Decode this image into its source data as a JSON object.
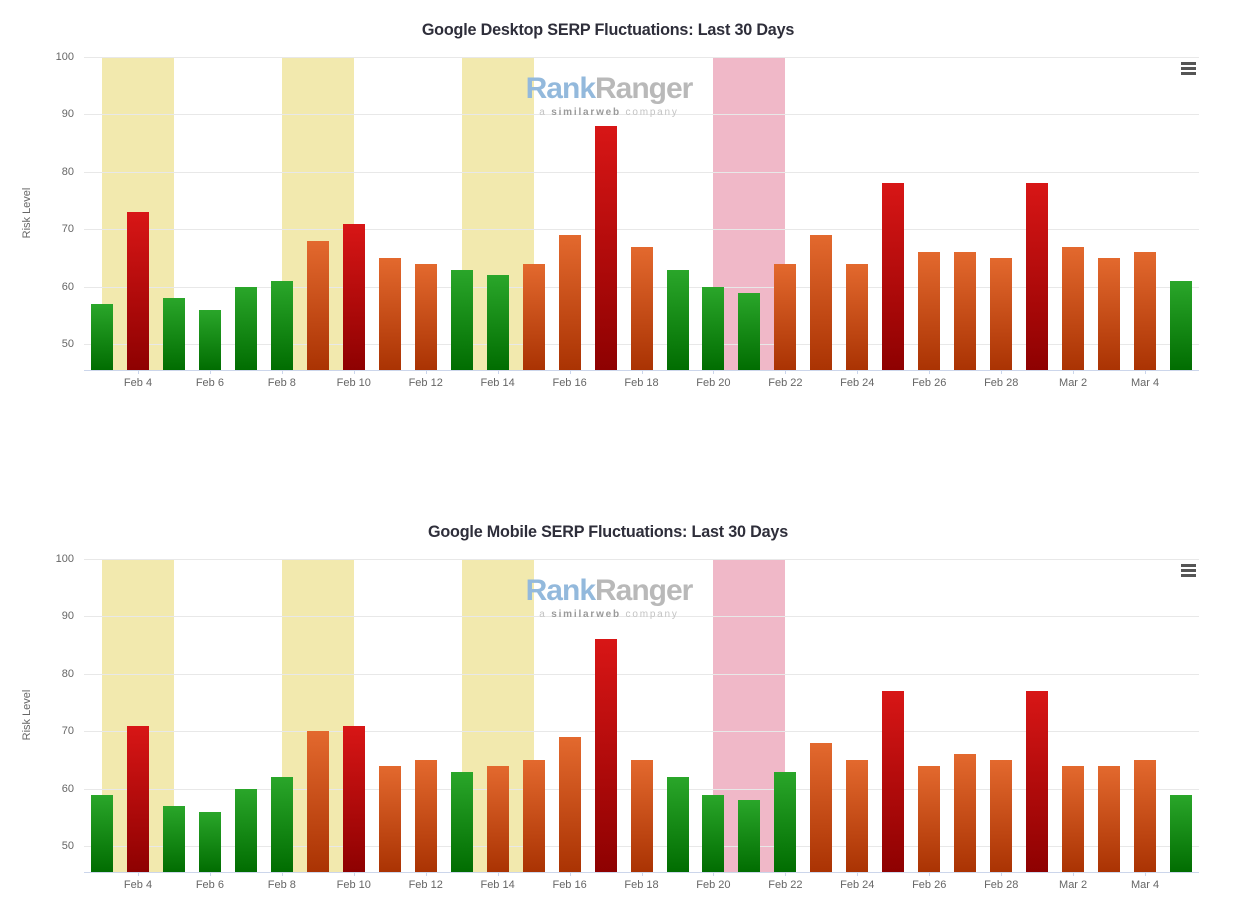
{
  "chart_data": [
    {
      "type": "bar",
      "title": "Google Desktop SERP Fluctuations: Last 30 Days",
      "xlabel": "",
      "ylabel": "Risk Level",
      "ylim": [
        45.5,
        100
      ],
      "ytick_labels": [
        50,
        60,
        70,
        80,
        90,
        100
      ],
      "grid": true,
      "legend": false,
      "x": [
        "Feb 3",
        "Feb 4",
        "Feb 5",
        "Feb 6",
        "Feb 7",
        "Feb 8",
        "Feb 9",
        "Feb 10",
        "Feb 11",
        "Feb 12",
        "Feb 13",
        "Feb 14",
        "Feb 15",
        "Feb 16",
        "Feb 17",
        "Feb 18",
        "Feb 19",
        "Feb 20",
        "Feb 21",
        "Feb 22",
        "Feb 23",
        "Feb 24",
        "Feb 25",
        "Feb 26",
        "Feb 27",
        "Feb 28",
        "Mar 1",
        "Mar 2",
        "Mar 3",
        "Mar 4",
        "Mar 5"
      ],
      "values": [
        57,
        73,
        58,
        56,
        60,
        61,
        68,
        71,
        65,
        64,
        63,
        62,
        64,
        69,
        88,
        67,
        63,
        60,
        59,
        64,
        69,
        64,
        78,
        66,
        66,
        65,
        78,
        67,
        65,
        66,
        61
      ],
      "x_tick_labels": [
        "Feb 4",
        "Feb 6",
        "Feb 8",
        "Feb 10",
        "Feb 12",
        "Feb 14",
        "Feb 16",
        "Feb 18",
        "Feb 20",
        "Feb 22",
        "Feb 24",
        "Feb 26",
        "Feb 28",
        "Mar 2",
        "Mar 4"
      ],
      "color_rules": {
        "green_max": 63,
        "orange_max": 70
      },
      "plot_bands": [
        {
          "from": "Feb 3",
          "to": "Feb 5",
          "color_key": "yellow"
        },
        {
          "from": "Feb 8",
          "to": "Feb 10",
          "color_key": "yellow"
        },
        {
          "from": "Feb 13",
          "to": "Feb 15",
          "color_key": "yellow"
        },
        {
          "from": "Feb 20",
          "to": "Feb 22",
          "color_key": "pink"
        }
      ]
    },
    {
      "type": "bar",
      "title": "Google Mobile SERP Fluctuations: Last 30 Days",
      "xlabel": "",
      "ylabel": "Risk Level",
      "ylim": [
        45.5,
        100
      ],
      "ytick_labels": [
        50,
        60,
        70,
        80,
        90,
        100
      ],
      "grid": true,
      "legend": false,
      "x": [
        "Feb 3",
        "Feb 4",
        "Feb 5",
        "Feb 6",
        "Feb 7",
        "Feb 8",
        "Feb 9",
        "Feb 10",
        "Feb 11",
        "Feb 12",
        "Feb 13",
        "Feb 14",
        "Feb 15",
        "Feb 16",
        "Feb 17",
        "Feb 18",
        "Feb 19",
        "Feb 20",
        "Feb 21",
        "Feb 22",
        "Feb 23",
        "Feb 24",
        "Feb 25",
        "Feb 26",
        "Feb 27",
        "Feb 28",
        "Mar 1",
        "Mar 2",
        "Mar 3",
        "Mar 4",
        "Mar 5"
      ],
      "values": [
        59,
        71,
        57,
        56,
        60,
        62,
        70,
        71,
        64,
        65,
        63,
        64,
        65,
        69,
        86,
        65,
        62,
        59,
        58,
        63,
        68,
        65,
        77,
        64,
        66,
        65,
        77,
        64,
        64,
        65,
        59
      ],
      "x_tick_labels": [
        "Feb 4",
        "Feb 6",
        "Feb 8",
        "Feb 10",
        "Feb 12",
        "Feb 14",
        "Feb 16",
        "Feb 18",
        "Feb 20",
        "Feb 22",
        "Feb 24",
        "Feb 26",
        "Feb 28",
        "Mar 2",
        "Mar 4"
      ],
      "color_rules": {
        "green_max": 63,
        "orange_max": 70
      },
      "plot_bands": [
        {
          "from": "Feb 3",
          "to": "Feb 5",
          "color_key": "yellow"
        },
        {
          "from": "Feb 8",
          "to": "Feb 10",
          "color_key": "yellow"
        },
        {
          "from": "Feb 13",
          "to": "Feb 15",
          "color_key": "yellow"
        },
        {
          "from": "Feb 20",
          "to": "Feb 22",
          "color_key": "pink"
        }
      ]
    }
  ],
  "watermark": {
    "name_part1": "Rank",
    "name_part2": "Ranger",
    "tagline_prefix": "a",
    "tagline_bold": "similarweb",
    "tagline_suffix": "company",
    "name_part1_color": "#93b9dc",
    "name_part2_color": "#b9b9b9"
  },
  "colors": {
    "band_yellow": "#f2e9ae",
    "band_pink": "#f0b8c8",
    "bar_green_top": "#2aa62a",
    "bar_green_bottom": "#016d01",
    "bar_orange_top": "#e3692e",
    "bar_orange_bottom": "#aa3303",
    "bar_red_top": "#d81616",
    "bar_red_bottom": "#8e0101",
    "gridline": "#e8e8e8",
    "axis_line": "#ccd6eb",
    "axis_text": "#666666",
    "title_text": "#2e2e3a"
  }
}
